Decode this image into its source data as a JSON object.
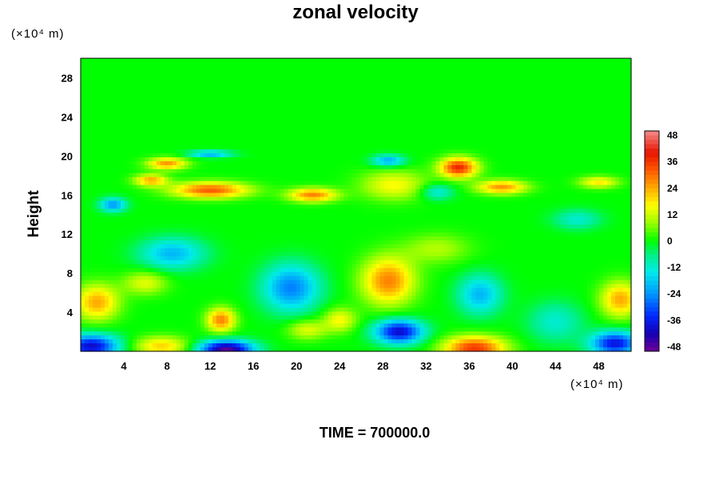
{
  "chart_data": {
    "type": "heatmap",
    "title": "zonal velocity",
    "xlabel": "",
    "ylabel": "Height",
    "x_unit_label": "(×10⁴ m)",
    "y_unit_label": "(×10⁴ m)",
    "footer": "TIME = 700000.0",
    "xlim": [
      0,
      51
    ],
    "ylim": [
      0,
      30
    ],
    "x_ticks": [
      4,
      8,
      12,
      16,
      20,
      24,
      28,
      32,
      36,
      40,
      44,
      48
    ],
    "y_ticks": [
      4,
      8,
      12,
      16,
      20,
      24,
      28
    ],
    "colorbar": {
      "range": [
        -50,
        50
      ],
      "ticks": [
        48,
        36,
        24,
        12,
        0,
        -12,
        -24,
        -36,
        -48
      ],
      "tick_labels": [
        "48",
        "36",
        "24",
        "12",
        "0",
        "-12",
        "-24",
        "-36",
        "-48"
      ]
    },
    "background_value": 0,
    "features": [
      {
        "x": 1,
        "y": 0.5,
        "value": -40,
        "sx": 2.5,
        "sy": 1.2
      },
      {
        "x": 13.5,
        "y": 0.2,
        "value": -48,
        "sx": 2.5,
        "sy": 0.9
      },
      {
        "x": 29.5,
        "y": 2,
        "value": -40,
        "sx": 2.2,
        "sy": 1.2
      },
      {
        "x": 49.5,
        "y": 0.8,
        "value": -38,
        "sx": 2.2,
        "sy": 1.2
      },
      {
        "x": 36.5,
        "y": 0.3,
        "value": 36,
        "sx": 2.8,
        "sy": 1.2
      },
      {
        "x": 7.5,
        "y": 0.5,
        "value": 20,
        "sx": 2.5,
        "sy": 1.0
      },
      {
        "x": 19.5,
        "y": 6.5,
        "value": -26,
        "sx": 2.6,
        "sy": 2.4
      },
      {
        "x": 8.5,
        "y": 10,
        "value": -20,
        "sx": 3.0,
        "sy": 1.6
      },
      {
        "x": 37,
        "y": 5.8,
        "value": -20,
        "sx": 2.0,
        "sy": 2.0
      },
      {
        "x": 44,
        "y": 3,
        "value": -12,
        "sx": 2.5,
        "sy": 2.0
      },
      {
        "x": 28.5,
        "y": 7.2,
        "value": 28,
        "sx": 2.4,
        "sy": 2.4
      },
      {
        "x": 1.5,
        "y": 5,
        "value": 24,
        "sx": 2.0,
        "sy": 1.8
      },
      {
        "x": 50,
        "y": 5.3,
        "value": 24,
        "sx": 1.8,
        "sy": 1.8
      },
      {
        "x": 13,
        "y": 3.2,
        "value": 28,
        "sx": 1.3,
        "sy": 1.2
      },
      {
        "x": 24,
        "y": 3.2,
        "value": 16,
        "sx": 1.5,
        "sy": 1.2
      },
      {
        "x": 21,
        "y": 2.2,
        "value": 14,
        "sx": 1.8,
        "sy": 1.0
      },
      {
        "x": 12,
        "y": 16.5,
        "value": 32,
        "sx": 3.5,
        "sy": 0.8
      },
      {
        "x": 21.5,
        "y": 16,
        "value": 28,
        "sx": 2.2,
        "sy": 0.7
      },
      {
        "x": 6.5,
        "y": 17.5,
        "value": 24,
        "sx": 1.5,
        "sy": 0.6
      },
      {
        "x": 35,
        "y": 18.8,
        "value": 38,
        "sx": 1.7,
        "sy": 1.0
      },
      {
        "x": 39,
        "y": 16.8,
        "value": 26,
        "sx": 2.3,
        "sy": 0.7
      },
      {
        "x": 8,
        "y": 19.2,
        "value": 26,
        "sx": 1.8,
        "sy": 0.6
      },
      {
        "x": 29,
        "y": 17,
        "value": 16,
        "sx": 3.0,
        "sy": 1.5
      },
      {
        "x": 48,
        "y": 17.3,
        "value": 18,
        "sx": 1.8,
        "sy": 0.6
      },
      {
        "x": 3,
        "y": 15,
        "value": -24,
        "sx": 1.2,
        "sy": 0.7
      },
      {
        "x": 12,
        "y": 20.2,
        "value": -22,
        "sx": 2.0,
        "sy": 0.35
      },
      {
        "x": 28.5,
        "y": 19.5,
        "value": -22,
        "sx": 1.5,
        "sy": 0.6
      },
      {
        "x": 33,
        "y": 16.3,
        "value": -14,
        "sx": 1.5,
        "sy": 0.8
      },
      {
        "x": 46,
        "y": 13.5,
        "value": -12,
        "sx": 2.2,
        "sy": 1.0
      },
      {
        "x": 6,
        "y": 7,
        "value": 14,
        "sx": 2.0,
        "sy": 1.2
      },
      {
        "x": 33,
        "y": 10.5,
        "value": 10,
        "sx": 3.0,
        "sy": 1.5
      }
    ]
  }
}
